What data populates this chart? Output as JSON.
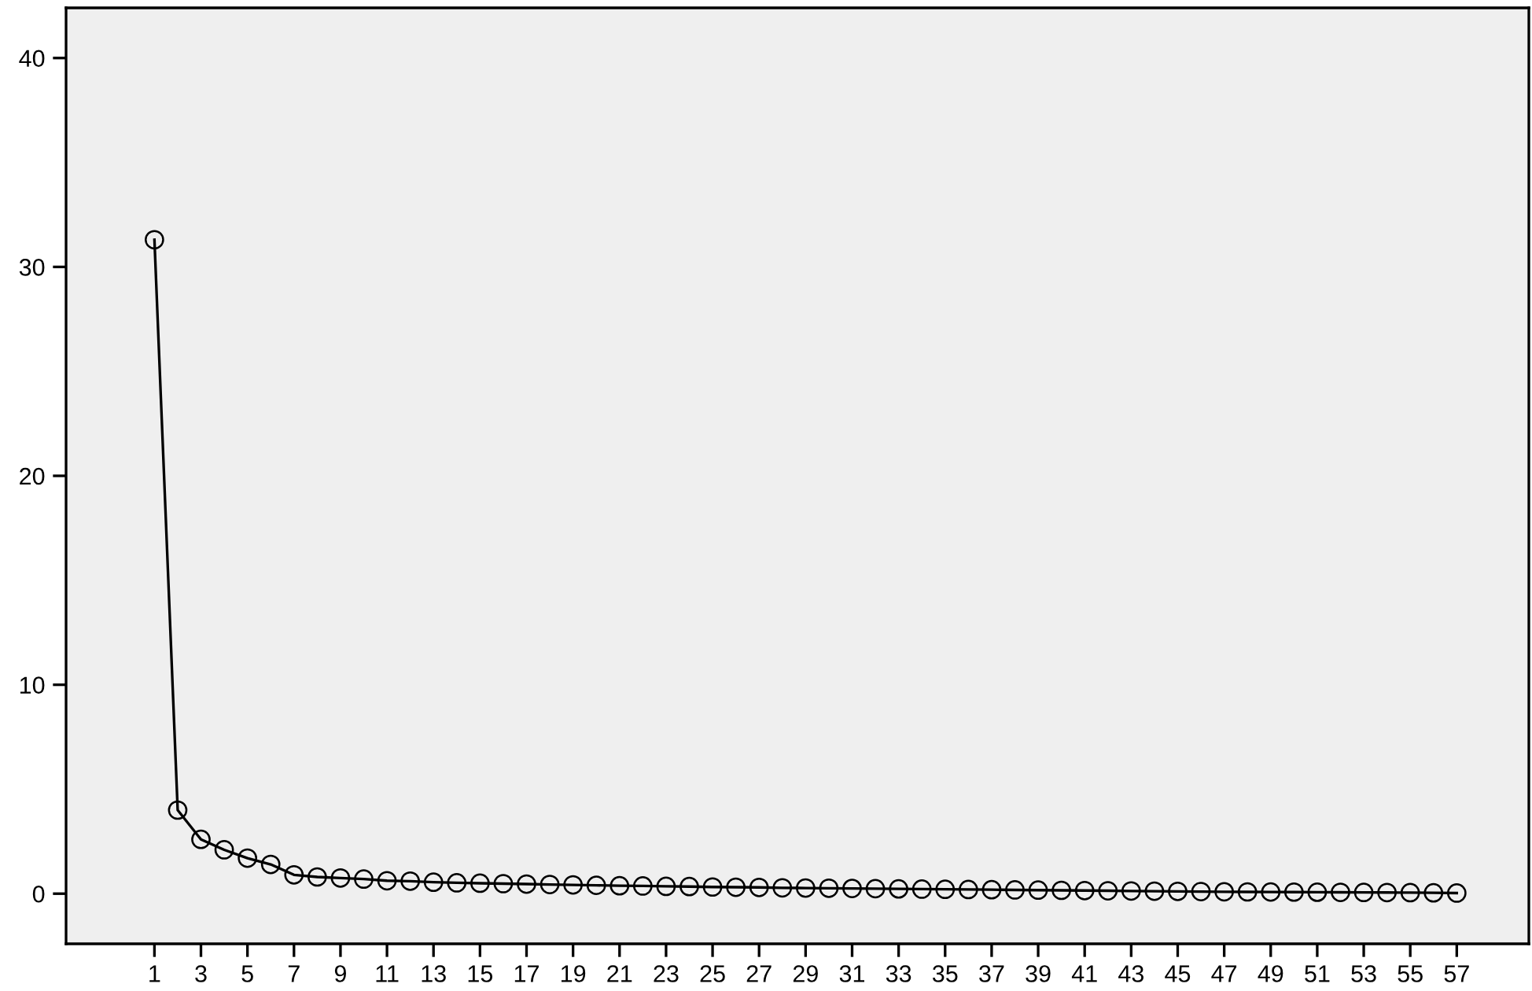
{
  "chart_data": {
    "type": "line",
    "categories": [
      "1",
      null,
      "3",
      null,
      "5",
      null,
      "7",
      null,
      "9",
      null,
      "11",
      null,
      "13",
      null,
      "15",
      null,
      "17",
      null,
      "19",
      null,
      "21",
      null,
      "23",
      null,
      "25",
      null,
      "27",
      null,
      "29",
      null,
      "31",
      null,
      "33",
      null,
      "35",
      null,
      "37",
      null,
      "39",
      null,
      "41",
      null,
      "43",
      null,
      "45",
      null,
      "47",
      null,
      "49",
      null,
      "51",
      null,
      "53",
      null,
      "55",
      null,
      "57"
    ],
    "series": [
      {
        "color": "#000000",
        "values": [
          31.3,
          4.0,
          2.6,
          2.1,
          1.7,
          1.4,
          0.9,
          0.8,
          0.75,
          0.7,
          0.62,
          0.6,
          0.55,
          0.52,
          0.5,
          0.48,
          0.46,
          0.44,
          0.42,
          0.4,
          0.38,
          0.37,
          0.35,
          0.34,
          0.32,
          0.31,
          0.3,
          0.28,
          0.27,
          0.26,
          0.25,
          0.24,
          0.23,
          0.22,
          0.21,
          0.2,
          0.19,
          0.18,
          0.17,
          0.16,
          0.15,
          0.14,
          0.13,
          0.12,
          0.11,
          0.1,
          0.09,
          0.085,
          0.08,
          0.075,
          0.07,
          0.065,
          0.06,
          0.055,
          0.05,
          0.04,
          0.03
        ]
      }
    ],
    "ylim": [
      -2.4,
      42.4
    ],
    "yticks": [
      0,
      10,
      20,
      30,
      40
    ],
    "marker": "circle",
    "line_style": "solid",
    "grid": false,
    "legend": false
  }
}
